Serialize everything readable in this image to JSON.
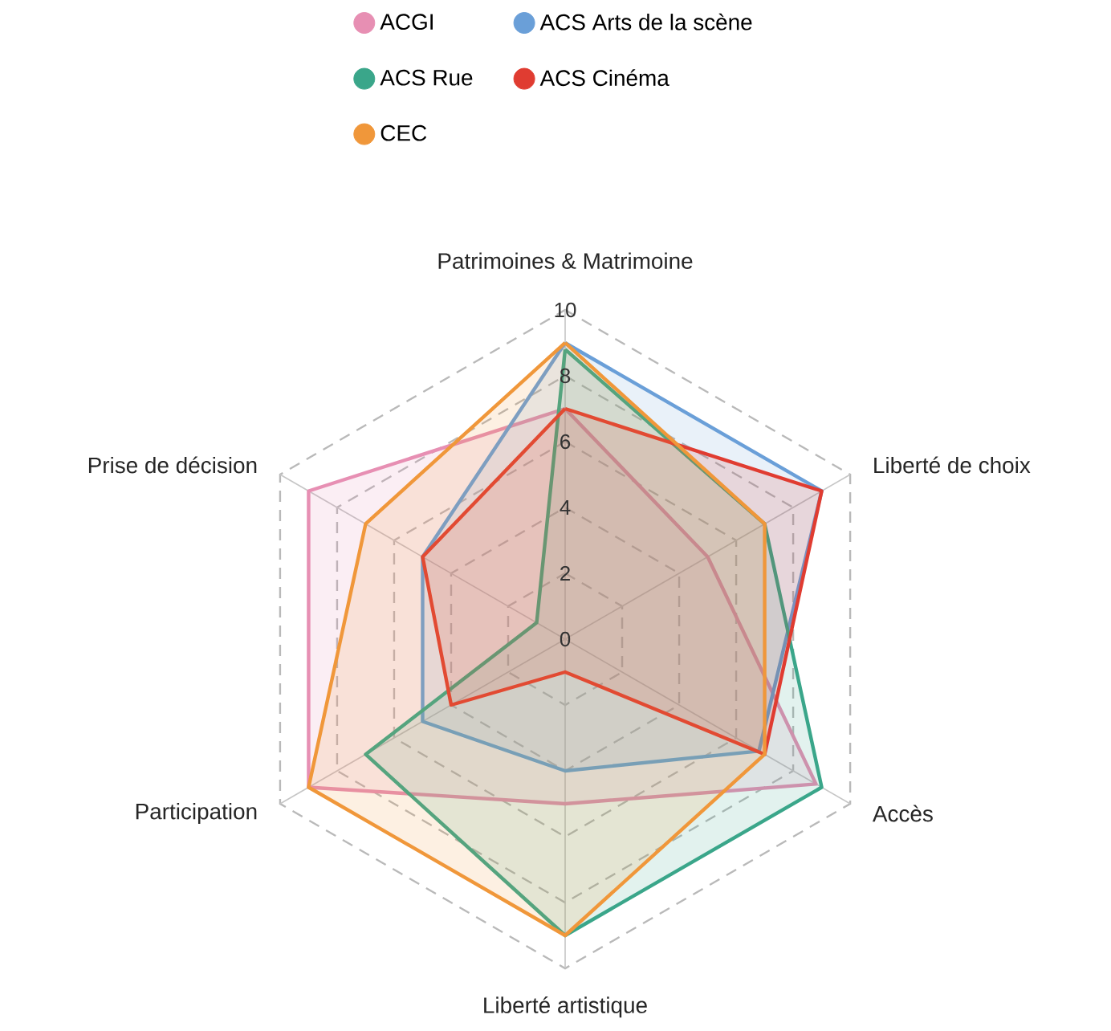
{
  "chart_data": {
    "type": "radar",
    "categories": [
      "Patrimoines & Matrimoine",
      "Liberté de choix",
      "Accès",
      "Liberté artistique",
      "Participation",
      "Prise de décision"
    ],
    "series": [
      {
        "name": "ACGI",
        "color": "#e78fb3",
        "values": [
          7,
          5,
          8.8,
          5,
          9,
          9
        ]
      },
      {
        "name": "ACS Arts de la scène",
        "color": "#6a9fd8",
        "values": [
          9,
          9,
          6.8,
          4,
          5,
          5
        ]
      },
      {
        "name": "ACS Rue",
        "color": "#3aa68a",
        "values": [
          8.8,
          7,
          9,
          9,
          7,
          1
        ]
      },
      {
        "name": "ACS Cinéma",
        "color": "#e03c31",
        "values": [
          7,
          9,
          7,
          1,
          4,
          5
        ]
      },
      {
        "name": "CEC",
        "color": "#f0973a",
        "values": [
          9,
          7,
          7,
          9,
          9,
          7
        ]
      }
    ],
    "ylim": [
      0,
      10
    ],
    "yticks": [
      0,
      2,
      4,
      6,
      8,
      10
    ],
    "grid": true,
    "legend": "top"
  }
}
